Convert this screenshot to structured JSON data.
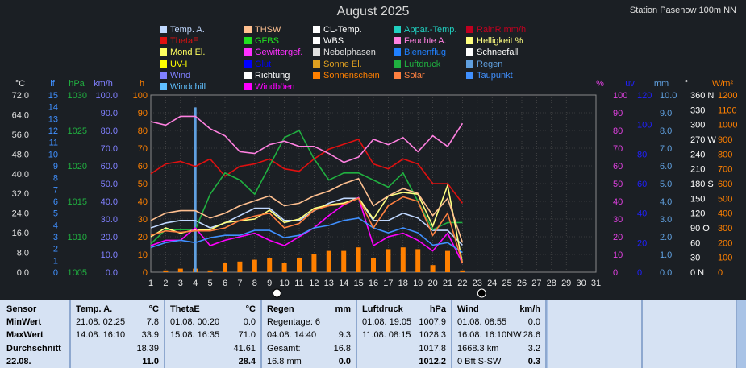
{
  "header": {
    "title": "August 2025",
    "station": "Station Pasenow 100m NN"
  },
  "legend": [
    {
      "label": "Temp. A.",
      "color": "#c0d8ff"
    },
    {
      "label": "THSW",
      "color": "#ffc090"
    },
    {
      "label": "CL-Temp.",
      "color": "#ffffff"
    },
    {
      "label": "Appar.-Temp.",
      "color": "#20d0c0"
    },
    {
      "label": "RainR mm/h",
      "color": "#c00020"
    },
    {
      "label": "ThetaE",
      "color": "#e01010"
    },
    {
      "label": "GFBS",
      "color": "#20e020"
    },
    {
      "label": "WBS",
      "color": "#ffffff"
    },
    {
      "label": "Feuchte A.",
      "color": "#ff80e0"
    },
    {
      "label": "Helligkeit %",
      "color": "#ffff80"
    },
    {
      "label": "Mond El.",
      "color": "#ffff60"
    },
    {
      "label": "Gewittergef.",
      "color": "#ff30ff"
    },
    {
      "label": "Nebelphasen",
      "color": "#e0e0e0"
    },
    {
      "label": "Bienenflug",
      "color": "#2080ff"
    },
    {
      "label": "Schneefall",
      "color": "#ffffff"
    },
    {
      "label": "UV-I",
      "color": "#ffff00"
    },
    {
      "label": "Glut",
      "color": "#0000ff"
    },
    {
      "label": "Sonne El.",
      "color": "#e0a020"
    },
    {
      "label": "Luftdruck",
      "color": "#20b040"
    },
    {
      "label": "Regen",
      "color": "#60a0e0"
    },
    {
      "label": "Wind",
      "color": "#8080ff"
    },
    {
      "label": "Richtung",
      "color": "#ffffff"
    },
    {
      "label": "Sonnenschein",
      "color": "#ff8000"
    },
    {
      "label": "Solar",
      "color": "#ff8040"
    },
    {
      "label": "Taupunkt",
      "color": "#4090ff"
    },
    {
      "label": "Windchill",
      "color": "#60c0ff"
    },
    {
      "label": "Windböen",
      "color": "#ff00ff"
    }
  ],
  "chart_data": {
    "type": "line",
    "title": "August 2025",
    "x": [
      1,
      2,
      3,
      4,
      5,
      6,
      7,
      8,
      9,
      10,
      11,
      12,
      13,
      14,
      15,
      16,
      17,
      18,
      19,
      20,
      21,
      22
    ],
    "xlim": [
      1,
      31
    ],
    "x_ticks": [
      "1",
      "2",
      "3",
      "4",
      "5",
      "6",
      "7",
      "8",
      "9",
      "10",
      "11",
      "12",
      "13",
      "14",
      "15",
      "16",
      "17",
      "18",
      "19",
      "20",
      "21",
      "22",
      "23",
      "24",
      "25",
      "26",
      "27",
      "28",
      "29",
      "30",
      "31"
    ],
    "axes": {
      "temp": {
        "unit": "°C",
        "ticks": [
          "72.0",
          "64.0",
          "56.0",
          "48.0",
          "40.0",
          "32.0",
          "24.0",
          "16.0",
          "8.0",
          "0.0"
        ],
        "color": "#e0e0e0"
      },
      "lf": {
        "unit": "lf",
        "ticks": [
          "15",
          "14",
          "13",
          "12",
          "11",
          "10",
          "9",
          "8",
          "7",
          "6",
          "5",
          "4",
          "3",
          "2",
          "1",
          "0"
        ],
        "color": "#4090ff"
      },
      "hpa": {
        "unit": "hPa",
        "ticks": [
          "1030",
          "1025",
          "1020",
          "1015",
          "1010",
          "1005"
        ],
        "color": "#20b040"
      },
      "kmh": {
        "unit": "km/h",
        "ticks": [
          "100.0",
          "90.0",
          "80.0",
          "70.0",
          "60.0",
          "50.0",
          "40.0",
          "30.0",
          "20.0",
          "10.0",
          "0.0"
        ],
        "color": "#8080ff"
      },
      "h": {
        "unit": "h",
        "ticks": [
          "100",
          "90",
          "80",
          "70",
          "60",
          "50",
          "40",
          "30",
          "20",
          "10",
          "0"
        ],
        "color": "#ff8000"
      },
      "pct": {
        "unit": "%",
        "ticks": [
          "100",
          "90",
          "80",
          "70",
          "60",
          "50",
          "40",
          "30",
          "20",
          "10",
          "0"
        ],
        "color": "#e040e0"
      },
      "uv": {
        "unit": "uv",
        "ticks": [
          "120",
          "100",
          "80",
          "60",
          "40",
          "20",
          "0"
        ],
        "color": "#2020ff"
      },
      "mm": {
        "unit": "mm",
        "ticks": [
          "10.0",
          "9.0",
          "8.0",
          "7.0",
          "6.0",
          "5.0",
          "4.0",
          "3.0",
          "2.0",
          "1.0",
          "0.0"
        ],
        "color": "#60a0e0"
      },
      "deg": {
        "unit": "°",
        "ticks": [
          "360 N",
          "330",
          "300",
          "270 W",
          "240",
          "210",
          "180 S",
          "150",
          "120",
          "90 O",
          "60",
          "30",
          "0 N"
        ],
        "color": "#ffffff"
      },
      "wm2": {
        "unit": "W/m²",
        "ticks": [
          "1200",
          "1100",
          "1000",
          "900",
          "800",
          "700",
          "600",
          "500",
          "400",
          "300",
          "200",
          "100",
          "0"
        ],
        "color": "#ff8000"
      }
    },
    "series": [
      {
        "name": "Temp. A.",
        "color": "#c0d8ff",
        "axis": "temp",
        "values": [
          18,
          20,
          21,
          21,
          18,
          20,
          23,
          26,
          26,
          21,
          21,
          25,
          28,
          30,
          30,
          21,
          21,
          24,
          22,
          17,
          17,
          11
        ]
      },
      {
        "name": "ThetaE",
        "color": "#e01010",
        "axis": "temp",
        "values": [
          40,
          44,
          45,
          43,
          46,
          39,
          43,
          44,
          46,
          42,
          41,
          46,
          50,
          52,
          54,
          44,
          42,
          46,
          44,
          36,
          36,
          28
        ]
      },
      {
        "name": "Luftdruck",
        "color": "#20b040",
        "axis": "hpa",
        "values": [
          1009,
          1011,
          1011,
          1011,
          1016,
          1019,
          1018,
          1016,
          1020,
          1024,
          1025,
          1021,
          1018,
          1019,
          1019,
          1018,
          1017,
          1019,
          1015,
          1011,
          1012,
          1012
        ]
      },
      {
        "name": "Feuchte A.",
        "color": "#ff80e0",
        "axis": "pct",
        "values": [
          85,
          83,
          88,
          88,
          81,
          77,
          68,
          67,
          72,
          74,
          71,
          71,
          67,
          62,
          65,
          75,
          72,
          76,
          68,
          77,
          71,
          84
        ]
      },
      {
        "name": "Helligkeit %",
        "color": "#ffff80",
        "axis": "pct",
        "values": [
          20,
          25,
          22,
          24,
          24,
          28,
          29,
          30,
          35,
          28,
          30,
          36,
          38,
          39,
          42,
          30,
          43,
          45,
          44,
          26,
          49,
          5
        ]
      },
      {
        "name": "THSW",
        "color": "#ffc090",
        "axis": "temp",
        "values": [
          21,
          24,
          25,
          25,
          22,
          24,
          27,
          29,
          31,
          27,
          28,
          31,
          33,
          36,
          38,
          27,
          31,
          34,
          32,
          23,
          30,
          12
        ]
      },
      {
        "name": "Windböen",
        "color": "#ff00ff",
        "axis": "kmh",
        "values": [
          15,
          18,
          18,
          25,
          15,
          18,
          20,
          22,
          18,
          15,
          20,
          25,
          32,
          38,
          42,
          15,
          20,
          22,
          18,
          12,
          22,
          5
        ]
      },
      {
        "name": "Taupunkt",
        "color": "#4090ff",
        "axis": "temp",
        "values": [
          10,
          12,
          13,
          12,
          14,
          15,
          15,
          17,
          17,
          14,
          15,
          18,
          19,
          21,
          22,
          18,
          16,
          18,
          16,
          11,
          12,
          8
        ]
      },
      {
        "name": "Solar",
        "color": "#ff8040",
        "axis": "wm2",
        "values": [
          250,
          280,
          270,
          280,
          280,
          300,
          350,
          380,
          400,
          300,
          330,
          420,
          450,
          460,
          500,
          300,
          450,
          510,
          480,
          250,
          400,
          60
        ]
      }
    ],
    "bars": {
      "name": "Sonnenschein",
      "color": "#ff8000",
      "axis": "h",
      "values": [
        0,
        1,
        2,
        2,
        1,
        5,
        6,
        7,
        8,
        5,
        8,
        10,
        12,
        12,
        14,
        8,
        13,
        14,
        13,
        4,
        12,
        1
      ]
    }
  },
  "stats": {
    "columns": [
      {
        "title": "Temp. A.",
        "unit": "°C",
        "rows": [
          [
            "21.08.  02:25",
            "7.8"
          ],
          [
            "14.08.  16:10",
            "33.9"
          ],
          [
            "",
            "18.39"
          ],
          [
            "",
            "11.0"
          ]
        ]
      },
      {
        "title": "ThetaE",
        "unit": "°C",
        "rows": [
          [
            "01.08.  00:20",
            "0.0"
          ],
          [
            "15.08.  16:35",
            "71.0"
          ],
          [
            "",
            "41.61"
          ],
          [
            "",
            "28.4"
          ]
        ]
      },
      {
        "title": "Regen",
        "unit": "mm",
        "rows": [
          [
            "Regentage: 6",
            ""
          ],
          [
            "04.08.  14:40",
            "9.3"
          ],
          [
            "Gesamt:",
            "16.8"
          ],
          [
            "16.8 mm",
            "0.0"
          ]
        ]
      },
      {
        "title": "Luftdruck",
        "unit": "hPa",
        "rows": [
          [
            "01.08.  19:05",
            "1007.9"
          ],
          [
            "11.08.  08:15",
            "1028.3"
          ],
          [
            "",
            "1017.8"
          ],
          [
            "",
            "1012.2"
          ]
        ]
      },
      {
        "title": "Wind",
        "unit": "km/h",
        "rows": [
          [
            "01.08.  08:55",
            "0.0"
          ],
          [
            "16.08.  16:10NW",
            "28.6"
          ],
          [
            "1668.3 km",
            "3.2"
          ],
          [
            "0 Bft S-SW",
            "0.3"
          ]
        ]
      }
    ],
    "row_labels": [
      "Sensor",
      "MinWert",
      "MaxWert",
      "Durchschnitt",
      "22.08."
    ]
  }
}
